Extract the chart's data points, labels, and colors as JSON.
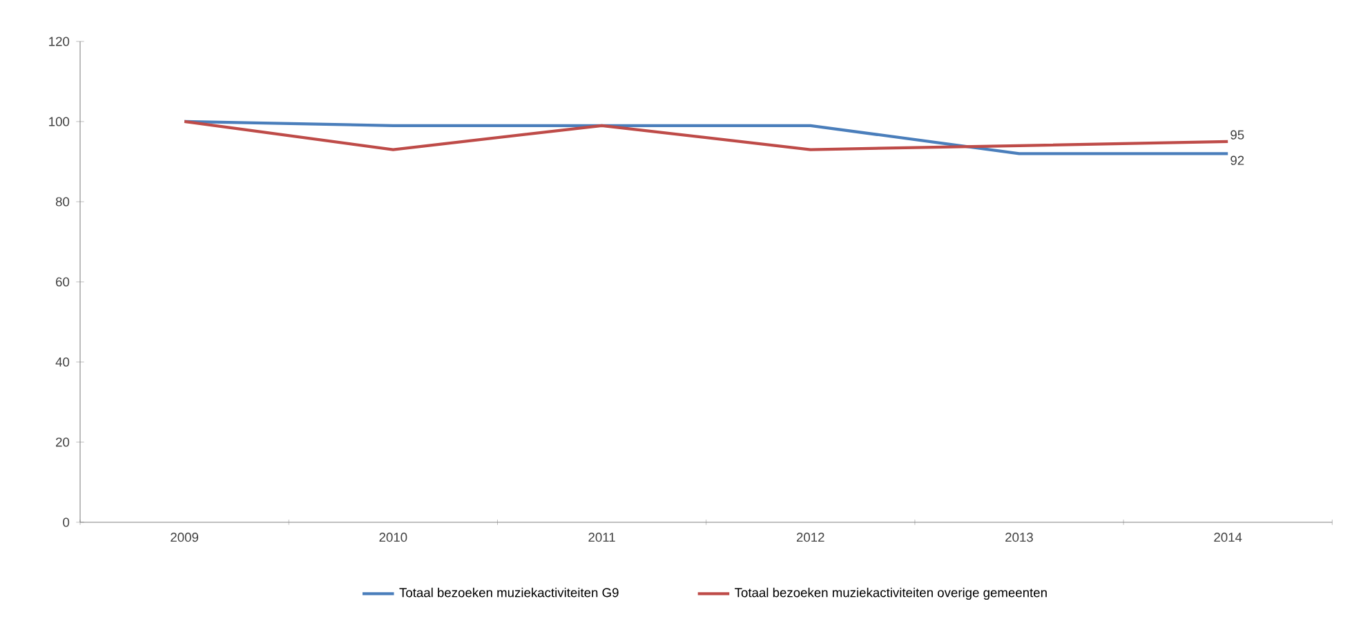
{
  "chart_data": {
    "type": "line",
    "categories": [
      "2009",
      "2010",
      "2011",
      "2012",
      "2013",
      "2014"
    ],
    "ylim": [
      0,
      120
    ],
    "yticks": [
      0,
      20,
      40,
      60,
      80,
      100,
      120
    ],
    "legend": "bottom",
    "marker": "none",
    "line_style": "solid",
    "series": [
      {
        "name": "Totaal bezoeken muziekactiviteiten G9",
        "color": "#4a7ebb",
        "values": [
          100,
          99,
          99,
          99,
          92,
          92
        ],
        "value_labels": [
          null,
          null,
          null,
          null,
          null,
          "92"
        ]
      },
      {
        "name": "Totaal bezoeken muziekactiviteiten overige gemeenten",
        "color": "#be4b48",
        "values": [
          100,
          93,
          99,
          93,
          94,
          95
        ],
        "value_labels": [
          null,
          null,
          null,
          null,
          null,
          "95"
        ]
      }
    ]
  }
}
